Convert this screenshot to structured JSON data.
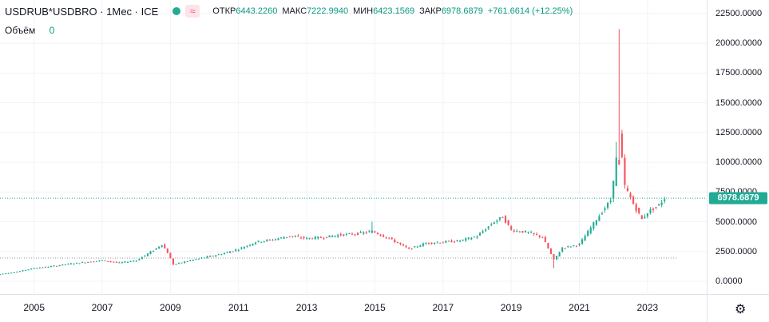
{
  "header": {
    "symbol": "USDRUB*USDBRO · 1Мес · ICE",
    "status_icon": "market-status-dot",
    "indicator_icon": "≈",
    "open_label": "ОТКР",
    "open_value": "6443.2260",
    "high_label": "МАКС",
    "high_value": "7222.9940",
    "low_label": "МИН",
    "low_value": "6423.1569",
    "close_label": "ЗАКР",
    "close_value": "6978.6879",
    "change_value": "+761.6614 (+12.25%)"
  },
  "volume": {
    "label": "Объём",
    "value": "0"
  },
  "price_axis": {
    "labels": [
      "22500.0000",
      "20000.0000",
      "17500.0000",
      "15000.0000",
      "12500.0000",
      "10000.0000",
      "7500.0000",
      "5000.0000",
      "2500.0000",
      "0.0000"
    ],
    "last_price": "6978.6879"
  },
  "time_axis": {
    "labels": [
      "2005",
      "2007",
      "2009",
      "2011",
      "2013",
      "2015",
      "2017",
      "2019",
      "2021",
      "2023"
    ]
  },
  "settings_icon": "gear-icon",
  "colors": {
    "up": "#22ab94",
    "down": "#f7525f",
    "grid": "#f0f3fa",
    "accent": "#22ab94"
  },
  "chart_data": {
    "type": "candlestick",
    "y_range": [
      -1000,
      23000
    ],
    "x_range": [
      "2004-01",
      "2023-12"
    ],
    "reference_lines": [
      6978.6879,
      1950
    ],
    "series_points": [
      [
        "2004-01",
        600
      ],
      [
        "2004-07",
        800
      ],
      [
        "2005-01",
        1100
      ],
      [
        "2005-07",
        1250
      ],
      [
        "2006-01",
        1450
      ],
      [
        "2006-07",
        1600
      ],
      [
        "2007-01",
        1750
      ],
      [
        "2007-07",
        1550
      ],
      [
        "2008-01",
        1750
      ],
      [
        "2008-07",
        2600
      ],
      [
        "2008-10",
        3100
      ],
      [
        "2008-12",
        2400
      ],
      [
        "2009-02",
        1400
      ],
      [
        "2009-07",
        1700
      ],
      [
        "2010-01",
        2000
      ],
      [
        "2010-07",
        2300
      ],
      [
        "2011-01",
        2700
      ],
      [
        "2011-07",
        3300
      ],
      [
        "2012-01",
        3500
      ],
      [
        "2012-07",
        3800
      ],
      [
        "2013-01",
        3600
      ],
      [
        "2013-07",
        3700
      ],
      [
        "2014-01",
        3900
      ],
      [
        "2014-07",
        4000
      ],
      [
        "2014-12",
        4200
      ],
      [
        "2015-06",
        3600
      ],
      [
        "2016-01",
        2700
      ],
      [
        "2016-07",
        3200
      ],
      [
        "2017-01",
        3300
      ],
      [
        "2017-07",
        3400
      ],
      [
        "2018-01",
        3800
      ],
      [
        "2018-07",
        5000
      ],
      [
        "2018-10",
        5400
      ],
      [
        "2019-01",
        4300
      ],
      [
        "2019-07",
        4100
      ],
      [
        "2019-12",
        3700
      ],
      [
        "2020-04",
        1800
      ],
      [
        "2020-07",
        2800
      ],
      [
        "2021-01",
        3100
      ],
      [
        "2021-07",
        5200
      ],
      [
        "2021-12",
        6800
      ],
      [
        "2022-02",
        10500
      ],
      [
        "2022-03",
        12500
      ],
      [
        "2022-05",
        8000
      ],
      [
        "2022-08",
        6500
      ],
      [
        "2022-11",
        5200
      ],
      [
        "2023-01",
        5800
      ],
      [
        "2023-05",
        6400
      ],
      [
        "2023-07",
        6978.6879
      ]
    ],
    "high_spike": {
      "date": "2022-03",
      "value": 21200
    },
    "y_ticks": [
      22500,
      20000,
      17500,
      15000,
      12500,
      10000,
      7500,
      5000,
      2500,
      0
    ],
    "x_ticks": [
      "2005",
      "2007",
      "2009",
      "2011",
      "2013",
      "2015",
      "2017",
      "2019",
      "2021",
      "2023"
    ]
  }
}
